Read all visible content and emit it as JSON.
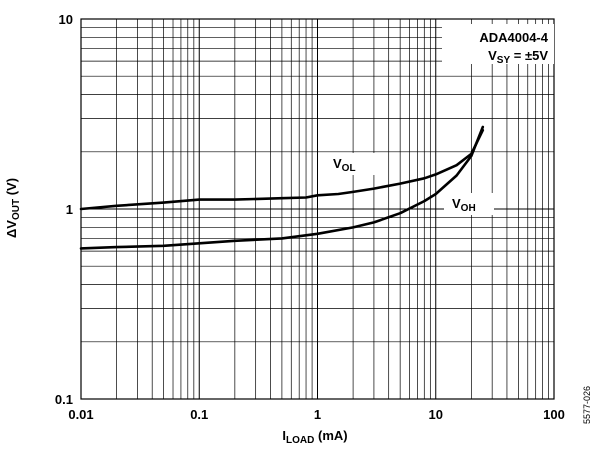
{
  "chart_data": {
    "type": "line",
    "x_scale": "log",
    "y_scale": "log",
    "xlim": [
      0.01,
      100
    ],
    "ylim": [
      0.1,
      10
    ],
    "x_ticks": [
      "0.01",
      "0.1",
      "1",
      "10",
      "100"
    ],
    "y_ticks": [
      "0.1",
      "1",
      "10"
    ],
    "xlabel": {
      "main": "I",
      "sub": "LOAD",
      "unit": " (mA)"
    },
    "ylabel": {
      "main": "ΔV",
      "sub": "OUT",
      "unit": " (V)"
    },
    "grid": true,
    "legend_box": {
      "line1": "ADA4004-4",
      "line2_main": "V",
      "line2_sub": "SY",
      "line2_rest": " = ±5V",
      "placement": "top-right"
    },
    "figure_id": "5577-026",
    "series": [
      {
        "name_main": "V",
        "name_sub": "OL",
        "x": [
          0.01,
          0.02,
          0.05,
          0.1,
          0.2,
          0.5,
          0.8,
          1,
          1.5,
          2,
          3,
          5,
          8,
          10,
          15,
          20,
          25
        ],
        "y": [
          1.0,
          1.04,
          1.08,
          1.12,
          1.12,
          1.14,
          1.15,
          1.18,
          1.2,
          1.23,
          1.28,
          1.36,
          1.45,
          1.52,
          1.7,
          1.95,
          2.6
        ]
      },
      {
        "name_main": "V",
        "name_sub": "OH",
        "x": [
          0.01,
          0.02,
          0.05,
          0.1,
          0.2,
          0.5,
          1,
          2,
          3,
          5,
          8,
          10,
          15,
          20,
          25
        ],
        "y": [
          0.62,
          0.63,
          0.64,
          0.66,
          0.68,
          0.7,
          0.74,
          0.8,
          0.85,
          0.95,
          1.1,
          1.2,
          1.5,
          1.9,
          2.7
        ]
      }
    ]
  }
}
